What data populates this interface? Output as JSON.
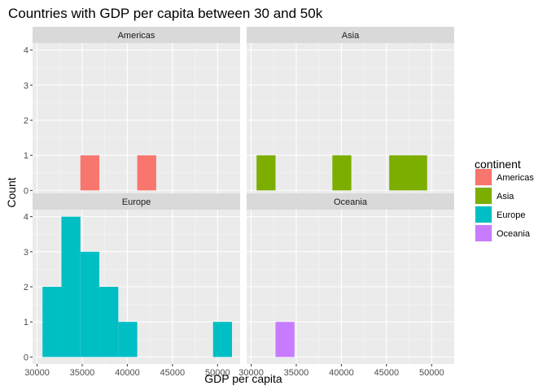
{
  "chart_data": {
    "type": "bar",
    "subtype": "faceted-histogram",
    "title": "Countries with GDP per capita between 30 and 50k",
    "xlabel": "GDP per capita",
    "ylabel": "Count",
    "xlim": [
      29500,
      52500
    ],
    "ylim": [
      -0.2,
      4.2
    ],
    "x_ticks": [
      30000,
      35000,
      40000,
      45000,
      50000
    ],
    "x_tick_labels": [
      "30000",
      "35000",
      "40000",
      "45000",
      "50000"
    ],
    "y_ticks": [
      0,
      1,
      2,
      3,
      4
    ],
    "y_tick_labels": [
      "0",
      "1",
      "2",
      "3",
      "4"
    ],
    "bin_width": 2100,
    "grid": true,
    "legend": {
      "title": "continent",
      "position": "right",
      "entries": [
        {
          "label": "Americas",
          "color": "#F8766D"
        },
        {
          "label": "Asia",
          "color": "#7CAE00"
        },
        {
          "label": "Europe",
          "color": "#00BFC4"
        },
        {
          "label": "Oceania",
          "color": "#C77CFF"
        }
      ]
    },
    "facets": [
      {
        "name": "Americas",
        "color": "#F8766D",
        "bins": [
          {
            "x0": 34800,
            "x1": 36900,
            "count": 1
          },
          {
            "x0": 41100,
            "x1": 43200,
            "count": 1
          }
        ]
      },
      {
        "name": "Asia",
        "color": "#7CAE00",
        "bins": [
          {
            "x0": 30600,
            "x1": 32700,
            "count": 1
          },
          {
            "x0": 39000,
            "x1": 41100,
            "count": 1
          },
          {
            "x0": 45300,
            "x1": 47400,
            "count": 1
          },
          {
            "x0": 47400,
            "x1": 49500,
            "count": 1
          }
        ]
      },
      {
        "name": "Europe",
        "color": "#00BFC4",
        "bins": [
          {
            "x0": 30600,
            "x1": 32700,
            "count": 2
          },
          {
            "x0": 32700,
            "x1": 34800,
            "count": 4
          },
          {
            "x0": 34800,
            "x1": 36900,
            "count": 3
          },
          {
            "x0": 36900,
            "x1": 39000,
            "count": 2
          },
          {
            "x0": 39000,
            "x1": 41100,
            "count": 1
          },
          {
            "x0": 49500,
            "x1": 51600,
            "count": 1
          }
        ]
      },
      {
        "name": "Oceania",
        "color": "#C77CFF",
        "bins": [
          {
            "x0": 32700,
            "x1": 34800,
            "count": 1
          }
        ]
      }
    ]
  }
}
